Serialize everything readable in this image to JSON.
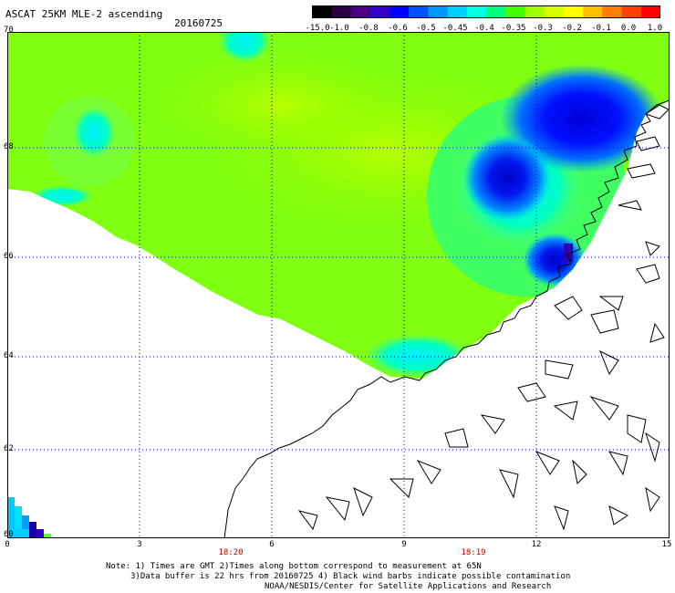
{
  "header": {
    "title": "ASCAT 25KM MLE-2 ascending",
    "date": "20160725"
  },
  "colorbar": {
    "ticks": [
      "-15.0",
      "-1.0",
      "-0.8",
      "-0.6",
      "-0.5",
      "-0.45",
      "-0.4",
      "-0.35",
      "-0.3",
      "-0.2",
      "-0.1",
      "0.0",
      "1.0"
    ],
    "colors": [
      "#000000",
      "#2a0040",
      "#4b0082",
      "#3300cc",
      "#0000ff",
      "#0050ff",
      "#0096ff",
      "#00d0ff",
      "#00ffe0",
      "#00ff80",
      "#40ff00",
      "#a0ff00",
      "#d8ff00",
      "#ffff00",
      "#ffc000",
      "#ff8000",
      "#ff4000",
      "#ff0000"
    ]
  },
  "axes": {
    "y_ticks": [
      "70",
      "68",
      "66",
      "64",
      "62",
      "60"
    ],
    "x_ticks": [
      "0",
      "3",
      "6",
      "9",
      "12",
      "15"
    ],
    "time_labels": [
      "18:20",
      "18:19"
    ]
  },
  "notes": [
    "Note: 1) Times are GMT 2)Times along bottom correspond to measurement at 65N",
    "3)Data buffer is 22 hrs from 20160725 4) Black wind barbs indicate possible contamination",
    "NOAA/NESDIS/Center for Satellite Applications and Research"
  ],
  "colors": {
    "field_green": "#80ff00",
    "field_lime": "#a8ff00",
    "field_cyan": "#00ffd0",
    "field_blue": "#0060ff",
    "field_navy": "#0000e0",
    "grid": "#0000ff"
  }
}
